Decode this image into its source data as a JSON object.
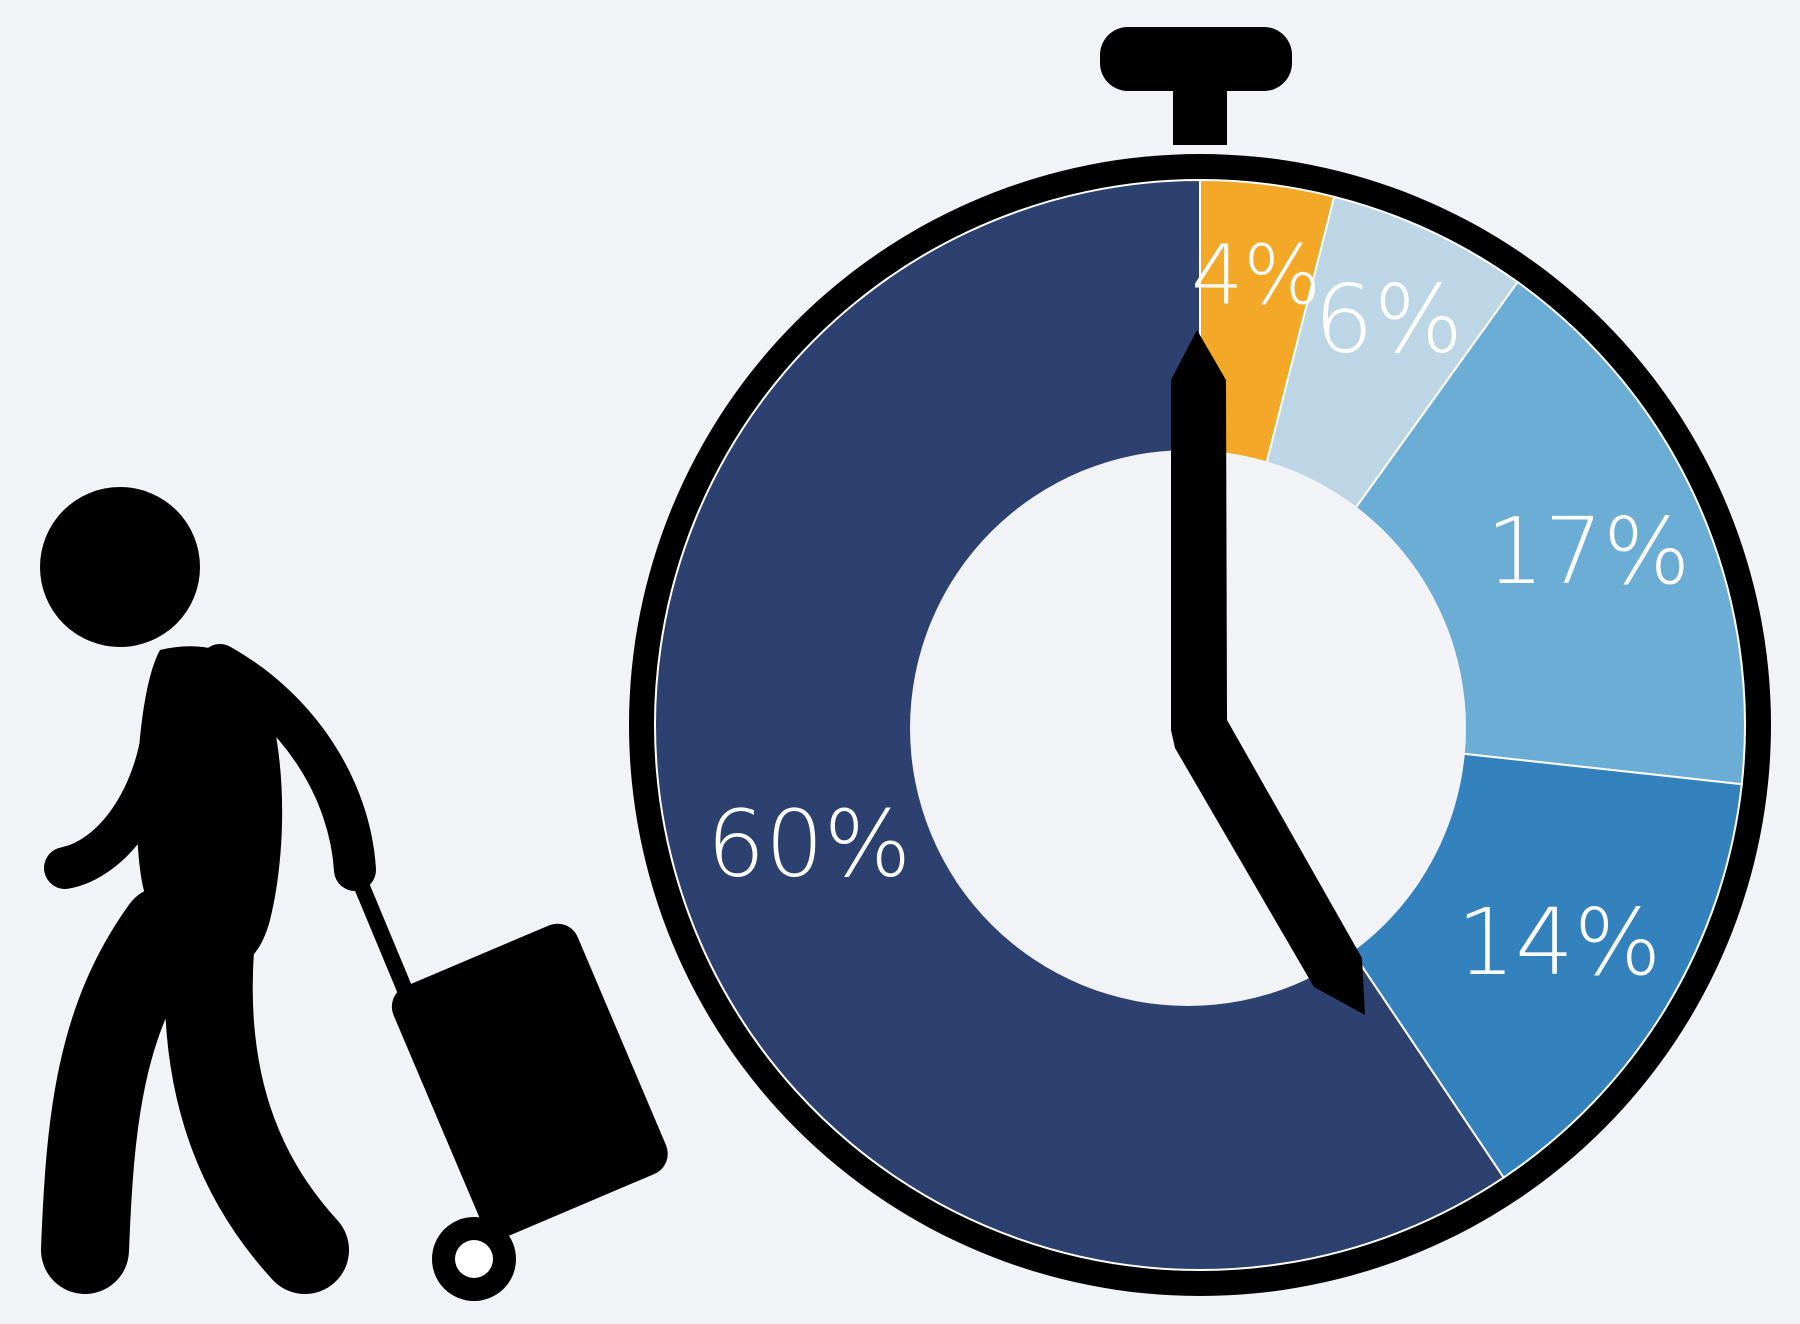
{
  "chart_data": {
    "type": "pie",
    "style": "donut stopwatch",
    "title": "",
    "slices": [
      {
        "value": 4,
        "label": "4%",
        "color": "#f4a827"
      },
      {
        "value": 6,
        "label": "6%",
        "color": "#bdd6e6"
      },
      {
        "value": 17,
        "label": "17%",
        "color": "#6badd5"
      },
      {
        "value": 14,
        "label": "14%",
        "color": "#3381bd"
      },
      {
        "value": 60,
        "label": "60%",
        "color": "#2c4170"
      }
    ],
    "center_color": "#f1f3f7",
    "outline_color": "#000000"
  },
  "illustration": {
    "figure_icon": "traveler-with-rolling-suitcase-icon",
    "clock_icon": "stopwatch-icon",
    "hand_icon": "clock-hand-icon"
  }
}
